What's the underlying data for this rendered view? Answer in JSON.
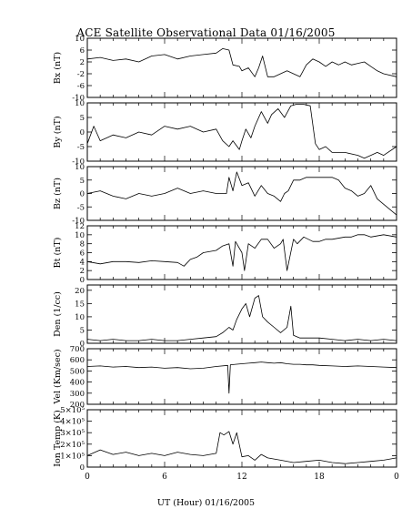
{
  "figure": {
    "title": "ACE Satellite Observational Data   01/16/2005",
    "xlabel": "UT (Hour)   01/16/2005"
  },
  "chart_data": [
    {
      "type": "line",
      "ylabel": "Bx (nT)",
      "ylim": [
        -10,
        10
      ],
      "yticks": [
        "10",
        "6",
        "2",
        "-2",
        "-6",
        "-10"
      ],
      "ytick_values": [
        10,
        6,
        2,
        -2,
        -6,
        -10
      ],
      "xlim": [
        0,
        24
      ],
      "xticks": [
        "0",
        "6",
        "12",
        "18",
        "0"
      ],
      "xtick_values": [
        0,
        6,
        12,
        18,
        24
      ],
      "series": [
        {
          "x": [
            0,
            1,
            2,
            3,
            4,
            5,
            6,
            7,
            8,
            9,
            10,
            10.5,
            11,
            11.3,
            11.8,
            12,
            12.5,
            13,
            13.3,
            13.6,
            14,
            14.5,
            15,
            15.5,
            16,
            16.5,
            17,
            17.5,
            18,
            18.5,
            19,
            19.5,
            20,
            20.5,
            21,
            21.5,
            22,
            22.5,
            23,
            24
          ],
          "values": [
            3,
            3.5,
            2.5,
            3,
            2,
            4,
            4.5,
            3,
            4,
            4.5,
            5,
            6.5,
            6,
            1,
            0.5,
            -1,
            0,
            -3,
            0,
            4,
            -3,
            -3,
            -2,
            -1,
            -2,
            -3,
            1,
            3,
            2,
            0.5,
            2,
            1,
            2,
            1,
            1.5,
            2,
            0.5,
            -1,
            -2,
            -3
          ]
        }
      ]
    },
    {
      "type": "line",
      "ylabel": "By (nT)",
      "ylim": [
        -10,
        10
      ],
      "yticks": [
        "10",
        "5",
        "0",
        "-5",
        "-10"
      ],
      "ytick_values": [
        10,
        5,
        0,
        -5,
        -10
      ],
      "xlim": [
        0,
        24
      ],
      "xticks": [
        "0",
        "6",
        "12",
        "18",
        "0"
      ],
      "xtick_values": [
        0,
        6,
        12,
        18,
        24
      ],
      "series": [
        {
          "x": [
            0,
            0.5,
            1,
            2,
            3,
            4,
            5,
            6,
            7,
            8,
            9,
            10,
            10.5,
            11,
            11.3,
            11.8,
            12,
            12.3,
            12.7,
            13,
            13.5,
            14,
            14.3,
            14.8,
            15.3,
            15.8,
            16.2,
            16.8,
            17.3,
            17.7,
            18,
            18.5,
            19,
            20,
            21,
            21.5,
            22,
            22.5,
            23,
            24
          ],
          "values": [
            -4,
            2,
            -3,
            -1,
            -2,
            0,
            -1,
            2,
            1,
            2,
            0,
            1,
            -3,
            -5,
            -3,
            -6,
            -3,
            1,
            -2,
            2,
            7,
            3,
            6,
            8,
            5,
            9,
            9.5,
            9.5,
            9,
            -4,
            -6,
            -5,
            -7,
            -7,
            -8,
            -9,
            -8,
            -7,
            -8,
            -5
          ]
        }
      ]
    },
    {
      "type": "line",
      "ylabel": "Bz (nT)",
      "ylim": [
        -10,
        10
      ],
      "yticks": [
        "10",
        "5",
        "0",
        "-5",
        "-10"
      ],
      "ytick_values": [
        10,
        5,
        0,
        -5,
        -10
      ],
      "xlim": [
        0,
        24
      ],
      "xticks": [
        "0",
        "6",
        "12",
        "18",
        "0"
      ],
      "xtick_values": [
        0,
        6,
        12,
        18,
        24
      ],
      "series": [
        {
          "x": [
            0,
            1,
            2,
            3,
            4,
            5,
            6,
            7,
            8,
            9,
            10,
            10.8,
            11,
            11.3,
            11.6,
            12,
            12.5,
            13,
            13.5,
            14,
            14.5,
            15,
            15.3,
            15.6,
            16,
            16.5,
            17,
            17.5,
            18,
            18.5,
            19,
            19.5,
            20,
            20.5,
            21,
            21.5,
            22,
            22.5,
            23,
            24
          ],
          "values": [
            0,
            1,
            -1,
            -2,
            0,
            -1,
            0,
            2,
            0,
            1,
            0,
            0,
            6,
            1,
            8,
            3,
            4,
            -1,
            3,
            0,
            -1,
            -3,
            0,
            1,
            5,
            5,
            6,
            6,
            6,
            6,
            6,
            5,
            2,
            1,
            -1,
            0,
            3,
            -2,
            -4,
            -8
          ]
        }
      ]
    },
    {
      "type": "line",
      "ylabel": "Bt (nT)",
      "ylim": [
        0,
        12
      ],
      "yticks": [
        "12",
        "10",
        "8",
        "6",
        "4",
        "2",
        "0"
      ],
      "ytick_values": [
        12,
        10,
        8,
        6,
        4,
        2,
        0
      ],
      "xlim": [
        0,
        24
      ],
      "xticks": [
        "0",
        "6",
        "12",
        "18",
        "0"
      ],
      "xtick_values": [
        0,
        6,
        12,
        18,
        24
      ],
      "series": [
        {
          "x": [
            0,
            1,
            2,
            3,
            4,
            5,
            6,
            7,
            7.5,
            8,
            8.5,
            9,
            10,
            10.5,
            11,
            11.3,
            11.5,
            12,
            12.2,
            12.5,
            13,
            13.5,
            14,
            14.5,
            15,
            15.2,
            15.5,
            16,
            16.3,
            16.8,
            17.5,
            18,
            18.5,
            19,
            20,
            20.5,
            21,
            21.5,
            22,
            23,
            24
          ],
          "values": [
            4,
            3.5,
            4,
            4,
            3.8,
            4.2,
            4,
            3.8,
            3,
            4.5,
            5,
            6,
            6.5,
            7.5,
            8,
            3,
            8.5,
            6,
            2,
            8,
            7,
            9,
            9,
            7,
            8,
            9,
            2,
            9,
            8,
            9.5,
            8.5,
            8.5,
            9,
            9,
            9.5,
            9.5,
            10,
            10,
            9.5,
            10,
            9.5
          ]
        }
      ]
    },
    {
      "type": "line",
      "ylabel": "Den (1/cc)",
      "ylim": [
        0,
        22
      ],
      "yticks": [
        "20",
        "15",
        "10",
        "5",
        "0"
      ],
      "ytick_values": [
        20,
        15,
        10,
        5,
        0
      ],
      "xlim": [
        0,
        24
      ],
      "xticks": [
        "0",
        "6",
        "12",
        "18",
        "0"
      ],
      "xtick_values": [
        0,
        6,
        12,
        18,
        24
      ],
      "series": [
        {
          "x": [
            0,
            1,
            2,
            3,
            4,
            5,
            6,
            7,
            8,
            9,
            10,
            10.5,
            11,
            11.3,
            11.6,
            12,
            12.3,
            12.6,
            13,
            13.3,
            13.6,
            14,
            14.5,
            15,
            15.5,
            15.8,
            16,
            16.5,
            17,
            18,
            19,
            20,
            21,
            22,
            23,
            24
          ],
          "values": [
            1.5,
            1,
            1.5,
            1,
            1,
            1.5,
            1,
            1,
            1.5,
            2,
            2.5,
            4,
            6,
            5,
            9,
            13,
            15,
            10,
            17,
            18,
            10,
            8,
            6,
            4,
            6,
            14,
            3,
            2,
            2,
            2,
            1.5,
            1,
            1.5,
            1,
            1.5,
            1
          ]
        }
      ]
    },
    {
      "type": "line",
      "ylabel": "Vel (Km/sec)",
      "ylim": [
        200,
        700
      ],
      "yticks": [
        "700",
        "600",
        "500",
        "400",
        "300",
        "200"
      ],
      "ytick_values": [
        700,
        600,
        500,
        400,
        300,
        200
      ],
      "xlim": [
        0,
        24
      ],
      "xticks": [
        "0",
        "6",
        "12",
        "18",
        "0"
      ],
      "xtick_values": [
        0,
        6,
        12,
        18,
        24
      ],
      "series": [
        {
          "x": [
            0,
            1,
            2,
            3,
            4,
            5,
            6,
            7,
            8,
            9,
            10,
            10.9,
            11,
            11.1,
            11.5,
            12,
            12.5,
            13,
            13.5,
            14,
            14.5,
            15,
            15.5,
            16,
            16.5,
            17,
            17.5,
            18,
            19,
            20,
            21,
            22,
            23,
            24
          ],
          "values": [
            540,
            545,
            535,
            540,
            530,
            535,
            525,
            530,
            520,
            525,
            540,
            550,
            300,
            555,
            560,
            565,
            570,
            575,
            580,
            575,
            570,
            575,
            565,
            560,
            560,
            555,
            555,
            550,
            545,
            540,
            545,
            540,
            535,
            530
          ]
        }
      ]
    },
    {
      "type": "line",
      "ylabel": "Ion Temp (K)",
      "ylim": [
        0,
        500000
      ],
      "yticks": [
        "5×10⁵",
        "4×10⁵",
        "3×10⁵",
        "2×10⁵",
        "1×10⁵",
        "0"
      ],
      "ytick_values": [
        500000,
        400000,
        300000,
        200000,
        100000,
        0
      ],
      "xlim": [
        0,
        24
      ],
      "xticks": [
        "0",
        "6",
        "12",
        "18",
        "0"
      ],
      "xtick_values": [
        0,
        6,
        12,
        18,
        24
      ],
      "series": [
        {
          "x": [
            0,
            1,
            2,
            3,
            4,
            5,
            6,
            7,
            8,
            9,
            10,
            10.3,
            10.6,
            11,
            11.3,
            11.6,
            12,
            12.5,
            13,
            13.5,
            14,
            15,
            16,
            17,
            18,
            19,
            20,
            21,
            22,
            23,
            24
          ],
          "values": [
            100000,
            150000,
            110000,
            130000,
            100000,
            120000,
            100000,
            130000,
            110000,
            100000,
            120000,
            300000,
            280000,
            310000,
            200000,
            300000,
            90000,
            100000,
            60000,
            110000,
            80000,
            60000,
            40000,
            50000,
            60000,
            40000,
            30000,
            40000,
            50000,
            60000,
            80000
          ]
        }
      ]
    }
  ]
}
